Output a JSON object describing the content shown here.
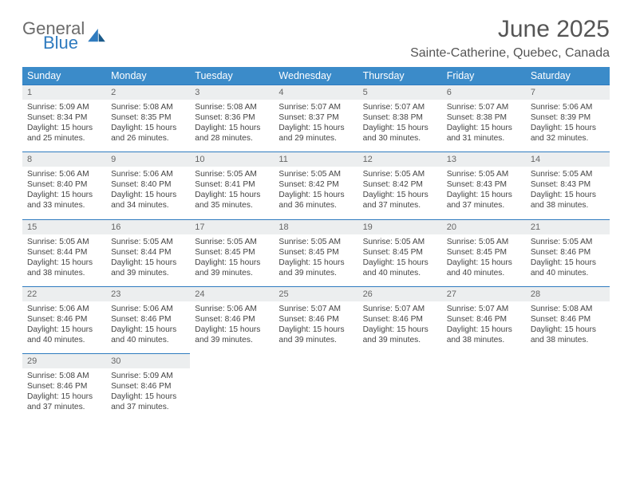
{
  "brand": {
    "general": "General",
    "blue": "Blue"
  },
  "title": "June 2025",
  "location": "Sainte-Catherine, Quebec, Canada",
  "theme": {
    "header_bg": "#3b8bc9",
    "header_text": "#ffffff",
    "daynum_bg": "#eceeef",
    "daynum_border": "#2f7bbf",
    "body_text": "#444444",
    "title_color": "#555555"
  },
  "weekdays": [
    "Sunday",
    "Monday",
    "Tuesday",
    "Wednesday",
    "Thursday",
    "Friday",
    "Saturday"
  ],
  "weeks": [
    {
      "nums": [
        "1",
        "2",
        "3",
        "4",
        "5",
        "6",
        "7"
      ],
      "cells": [
        {
          "sunrise": "Sunrise: 5:09 AM",
          "sunset": "Sunset: 8:34 PM",
          "d1": "Daylight: 15 hours",
          "d2": "and 25 minutes."
        },
        {
          "sunrise": "Sunrise: 5:08 AM",
          "sunset": "Sunset: 8:35 PM",
          "d1": "Daylight: 15 hours",
          "d2": "and 26 minutes."
        },
        {
          "sunrise": "Sunrise: 5:08 AM",
          "sunset": "Sunset: 8:36 PM",
          "d1": "Daylight: 15 hours",
          "d2": "and 28 minutes."
        },
        {
          "sunrise": "Sunrise: 5:07 AM",
          "sunset": "Sunset: 8:37 PM",
          "d1": "Daylight: 15 hours",
          "d2": "and 29 minutes."
        },
        {
          "sunrise": "Sunrise: 5:07 AM",
          "sunset": "Sunset: 8:38 PM",
          "d1": "Daylight: 15 hours",
          "d2": "and 30 minutes."
        },
        {
          "sunrise": "Sunrise: 5:07 AM",
          "sunset": "Sunset: 8:38 PM",
          "d1": "Daylight: 15 hours",
          "d2": "and 31 minutes."
        },
        {
          "sunrise": "Sunrise: 5:06 AM",
          "sunset": "Sunset: 8:39 PM",
          "d1": "Daylight: 15 hours",
          "d2": "and 32 minutes."
        }
      ]
    },
    {
      "nums": [
        "8",
        "9",
        "10",
        "11",
        "12",
        "13",
        "14"
      ],
      "cells": [
        {
          "sunrise": "Sunrise: 5:06 AM",
          "sunset": "Sunset: 8:40 PM",
          "d1": "Daylight: 15 hours",
          "d2": "and 33 minutes."
        },
        {
          "sunrise": "Sunrise: 5:06 AM",
          "sunset": "Sunset: 8:40 PM",
          "d1": "Daylight: 15 hours",
          "d2": "and 34 minutes."
        },
        {
          "sunrise": "Sunrise: 5:05 AM",
          "sunset": "Sunset: 8:41 PM",
          "d1": "Daylight: 15 hours",
          "d2": "and 35 minutes."
        },
        {
          "sunrise": "Sunrise: 5:05 AM",
          "sunset": "Sunset: 8:42 PM",
          "d1": "Daylight: 15 hours",
          "d2": "and 36 minutes."
        },
        {
          "sunrise": "Sunrise: 5:05 AM",
          "sunset": "Sunset: 8:42 PM",
          "d1": "Daylight: 15 hours",
          "d2": "and 37 minutes."
        },
        {
          "sunrise": "Sunrise: 5:05 AM",
          "sunset": "Sunset: 8:43 PM",
          "d1": "Daylight: 15 hours",
          "d2": "and 37 minutes."
        },
        {
          "sunrise": "Sunrise: 5:05 AM",
          "sunset": "Sunset: 8:43 PM",
          "d1": "Daylight: 15 hours",
          "d2": "and 38 minutes."
        }
      ]
    },
    {
      "nums": [
        "15",
        "16",
        "17",
        "18",
        "19",
        "20",
        "21"
      ],
      "cells": [
        {
          "sunrise": "Sunrise: 5:05 AM",
          "sunset": "Sunset: 8:44 PM",
          "d1": "Daylight: 15 hours",
          "d2": "and 38 minutes."
        },
        {
          "sunrise": "Sunrise: 5:05 AM",
          "sunset": "Sunset: 8:44 PM",
          "d1": "Daylight: 15 hours",
          "d2": "and 39 minutes."
        },
        {
          "sunrise": "Sunrise: 5:05 AM",
          "sunset": "Sunset: 8:45 PM",
          "d1": "Daylight: 15 hours",
          "d2": "and 39 minutes."
        },
        {
          "sunrise": "Sunrise: 5:05 AM",
          "sunset": "Sunset: 8:45 PM",
          "d1": "Daylight: 15 hours",
          "d2": "and 39 minutes."
        },
        {
          "sunrise": "Sunrise: 5:05 AM",
          "sunset": "Sunset: 8:45 PM",
          "d1": "Daylight: 15 hours",
          "d2": "and 40 minutes."
        },
        {
          "sunrise": "Sunrise: 5:05 AM",
          "sunset": "Sunset: 8:45 PM",
          "d1": "Daylight: 15 hours",
          "d2": "and 40 minutes."
        },
        {
          "sunrise": "Sunrise: 5:05 AM",
          "sunset": "Sunset: 8:46 PM",
          "d1": "Daylight: 15 hours",
          "d2": "and 40 minutes."
        }
      ]
    },
    {
      "nums": [
        "22",
        "23",
        "24",
        "25",
        "26",
        "27",
        "28"
      ],
      "cells": [
        {
          "sunrise": "Sunrise: 5:06 AM",
          "sunset": "Sunset: 8:46 PM",
          "d1": "Daylight: 15 hours",
          "d2": "and 40 minutes."
        },
        {
          "sunrise": "Sunrise: 5:06 AM",
          "sunset": "Sunset: 8:46 PM",
          "d1": "Daylight: 15 hours",
          "d2": "and 40 minutes."
        },
        {
          "sunrise": "Sunrise: 5:06 AM",
          "sunset": "Sunset: 8:46 PM",
          "d1": "Daylight: 15 hours",
          "d2": "and 39 minutes."
        },
        {
          "sunrise": "Sunrise: 5:07 AM",
          "sunset": "Sunset: 8:46 PM",
          "d1": "Daylight: 15 hours",
          "d2": "and 39 minutes."
        },
        {
          "sunrise": "Sunrise: 5:07 AM",
          "sunset": "Sunset: 8:46 PM",
          "d1": "Daylight: 15 hours",
          "d2": "and 39 minutes."
        },
        {
          "sunrise": "Sunrise: 5:07 AM",
          "sunset": "Sunset: 8:46 PM",
          "d1": "Daylight: 15 hours",
          "d2": "and 38 minutes."
        },
        {
          "sunrise": "Sunrise: 5:08 AM",
          "sunset": "Sunset: 8:46 PM",
          "d1": "Daylight: 15 hours",
          "d2": "and 38 minutes."
        }
      ]
    },
    {
      "nums": [
        "29",
        "30",
        "",
        "",
        "",
        "",
        ""
      ],
      "cells": [
        {
          "sunrise": "Sunrise: 5:08 AM",
          "sunset": "Sunset: 8:46 PM",
          "d1": "Daylight: 15 hours",
          "d2": "and 37 minutes."
        },
        {
          "sunrise": "Sunrise: 5:09 AM",
          "sunset": "Sunset: 8:46 PM",
          "d1": "Daylight: 15 hours",
          "d2": "and 37 minutes."
        },
        null,
        null,
        null,
        null,
        null
      ]
    }
  ]
}
